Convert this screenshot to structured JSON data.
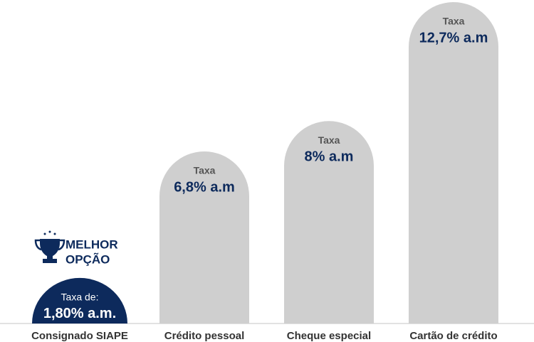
{
  "chart_data": {
    "type": "bar",
    "categories": [
      "Consignado SIAPE",
      "Crédito pessoal",
      "Cheque especial",
      "Cartão de crédito"
    ],
    "values": [
      1.8,
      6.8,
      8,
      12.7
    ],
    "value_labels": [
      "1,80% a.m.",
      "6,8% a.m",
      "8% a.m",
      "12,7% a.m"
    ],
    "bar_captions": [
      "Taxa de:",
      "Taxa",
      "Taxa",
      "Taxa"
    ],
    "colors": [
      "#0d2a5c",
      "#cfcfcf",
      "#cfcfcf",
      "#cfcfcf"
    ],
    "label_colors": [
      "#ffffff",
      "#0d2a5c",
      "#0d2a5c",
      "#0d2a5c"
    ],
    "badge": [
      "MELHOR",
      "OPÇÃO"
    ]
  }
}
